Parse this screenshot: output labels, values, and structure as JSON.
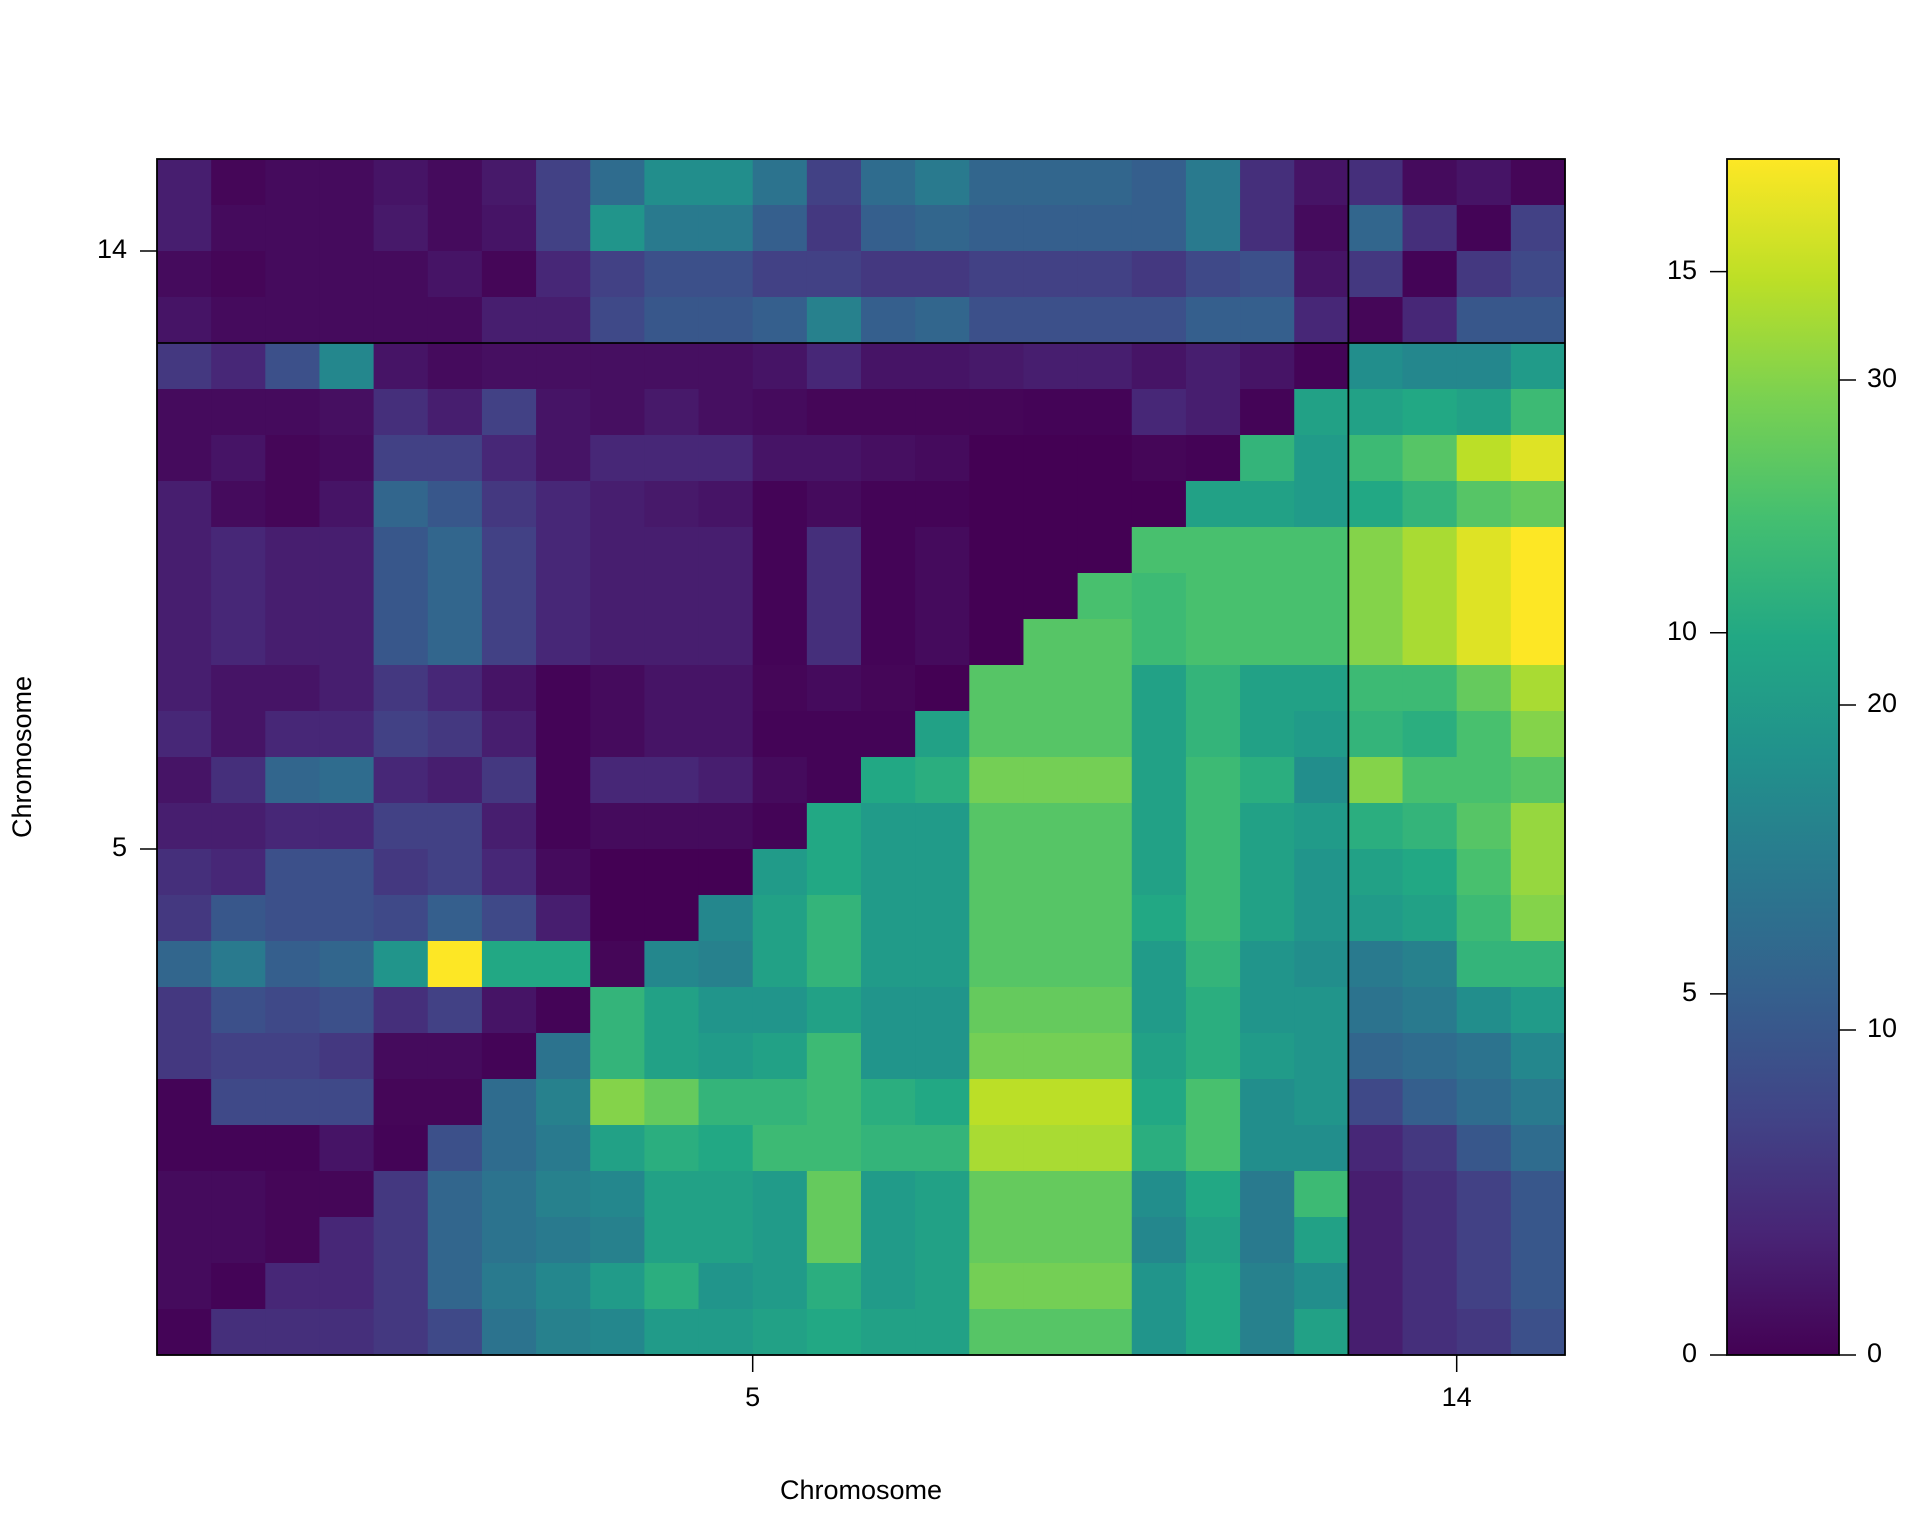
{
  "chart_data": {
    "type": "heatmap",
    "x_label": "Chromosome",
    "y_label": "Chromosome",
    "chromosomes": [
      "5",
      "14"
    ],
    "markers_per_chromosome": [
      22,
      4
    ],
    "colormap": "viridis",
    "zlim": [
      0,
      36.8
    ],
    "z": [
      [
        3,
        0.5,
        1,
        1,
        2,
        1,
        2.5,
        7,
        13,
        18,
        18,
        14,
        7,
        13,
        15,
        12,
        12,
        12,
        11,
        15,
        5,
        2,
        5,
        1,
        2,
        0.5
      ],
      [
        3,
        1,
        1,
        1,
        2.5,
        1,
        2,
        7,
        19,
        15,
        15,
        11,
        6,
        11,
        12,
        11,
        11,
        11,
        11,
        15,
        5,
        1,
        12,
        5,
        0.3,
        7
      ],
      [
        1,
        0.5,
        1,
        1,
        1,
        2,
        0.5,
        4,
        7,
        9,
        9,
        7,
        7,
        6,
        6,
        7,
        7,
        7,
        6,
        8,
        9,
        2,
        6,
        0.3,
        6,
        8
      ],
      [
        2,
        1,
        1,
        1,
        1,
        1,
        3,
        3,
        8,
        10,
        10,
        11,
        16,
        11,
        12,
        9,
        9,
        9,
        9,
        11,
        11,
        4,
        0.5,
        4,
        10,
        10
      ],
      [
        6,
        4,
        9,
        17,
        2,
        1,
        1.5,
        1.5,
        1.5,
        1.5,
        1.5,
        2,
        4,
        2,
        2,
        2.5,
        3,
        3,
        2,
        3,
        2,
        0.3,
        18,
        17,
        17,
        20
      ],
      [
        1,
        1,
        1,
        1.5,
        5,
        3,
        7,
        2,
        1.5,
        2.5,
        1.5,
        1,
        0.5,
        0.5,
        0.5,
        0.5,
        0.3,
        0.3,
        4,
        3,
        0.3,
        21,
        21,
        22,
        21,
        25
      ],
      [
        1,
        2,
        0.5,
        1,
        7,
        7,
        4,
        2,
        4,
        4,
        4,
        2,
        2,
        1.5,
        1,
        0,
        0,
        0,
        0.5,
        0.2,
        24,
        20,
        25,
        27,
        33,
        35
      ],
      [
        3,
        1,
        0.5,
        2,
        12,
        10,
        6,
        4,
        3,
        2.5,
        2,
        0.3,
        1,
        0.3,
        0.3,
        0,
        0,
        0,
        0,
        21,
        21,
        20,
        22,
        24,
        27,
        28
      ],
      [
        3,
        4,
        3,
        3,
        10,
        12,
        7,
        4,
        3,
        3,
        3,
        0.3,
        5,
        0.3,
        1,
        0,
        0,
        0,
        26,
        26,
        26,
        26,
        30,
        32,
        35,
        37
      ],
      [
        3,
        4,
        3,
        3,
        10,
        12,
        7,
        4,
        3,
        3,
        3,
        0.3,
        5,
        0.3,
        1,
        0,
        0,
        26,
        25,
        26,
        26,
        26,
        30,
        32,
        35,
        37
      ],
      [
        3,
        4,
        3,
        3,
        10,
        12,
        7,
        4,
        3,
        3,
        3,
        0.3,
        5,
        0.3,
        1,
        0,
        27,
        27,
        25,
        26,
        26,
        26,
        30,
        32,
        35,
        37
      ],
      [
        3,
        2,
        2,
        3,
        6,
        4,
        2,
        0.3,
        1,
        2,
        2,
        0.5,
        1,
        0.5,
        0,
        27,
        27,
        27,
        21,
        24,
        21,
        21,
        25,
        25,
        28,
        32
      ],
      [
        4,
        2,
        4,
        4,
        7,
        6,
        3,
        0.3,
        1,
        2,
        2,
        0.3,
        0.3,
        0.3,
        21,
        27,
        27,
        27,
        21,
        24,
        21,
        20,
        24,
        23,
        26,
        30
      ],
      [
        2,
        5,
        12,
        13,
        4,
        3,
        6,
        0.3,
        4,
        4,
        3,
        1,
        0.3,
        22,
        23,
        29,
        29,
        29,
        21,
        25,
        23,
        18,
        30,
        26,
        26,
        27
      ],
      [
        3,
        3,
        4,
        4,
        7,
        7,
        3,
        0.3,
        1,
        1,
        1,
        0.3,
        22,
        20,
        20,
        27,
        27,
        27,
        21,
        25,
        21,
        20,
        23,
        24,
        27,
        31
      ],
      [
        5,
        4,
        9,
        9,
        6,
        7,
        4,
        1,
        0,
        0,
        0,
        20,
        22,
        20,
        20,
        27,
        27,
        27,
        21,
        25,
        21,
        19,
        21,
        22,
        26,
        31
      ],
      [
        6,
        10,
        9,
        9,
        8,
        11,
        8,
        3,
        0,
        0,
        17,
        21,
        24,
        20,
        20,
        27,
        27,
        27,
        22,
        25,
        21,
        19,
        20,
        21,
        25,
        30
      ],
      [
        12,
        15,
        11,
        12,
        19,
        37,
        22,
        22,
        0.5,
        17,
        16,
        21,
        24,
        20,
        20,
        27,
        27,
        27,
        20,
        24,
        19,
        18,
        15,
        16,
        24,
        24
      ],
      [
        6,
        9,
        8,
        9,
        5,
        7,
        2,
        0.3,
        24,
        21,
        19,
        19,
        21,
        19,
        19,
        28,
        28,
        28,
        20,
        23,
        19,
        19,
        14,
        15,
        18,
        20
      ],
      [
        6,
        7,
        7,
        6,
        1,
        1,
        0.3,
        14,
        24,
        21,
        20,
        21,
        25,
        19,
        19,
        29,
        29,
        29,
        21,
        23,
        20,
        19,
        12,
        13,
        14,
        17
      ],
      [
        0.3,
        8,
        8,
        8,
        0.5,
        0.5,
        13,
        16,
        30,
        28,
        24,
        24,
        25,
        23,
        22,
        33,
        33,
        33,
        22,
        26,
        18,
        19,
        8,
        11,
        13,
        15
      ],
      [
        0.3,
        0.3,
        0.3,
        2,
        0.3,
        9,
        13,
        15,
        21,
        23,
        22,
        25,
        25,
        24,
        24,
        32,
        32,
        32,
        23,
        26,
        18,
        18,
        4,
        6,
        10,
        13
      ],
      [
        1,
        1,
        0.5,
        0.5,
        6,
        12,
        14,
        16,
        17,
        21,
        21,
        20,
        28,
        20,
        21,
        28,
        28,
        28,
        18,
        22,
        15,
        25,
        3,
        5,
        7,
        10
      ],
      [
        1,
        1,
        0.5,
        4,
        6,
        12,
        14,
        15,
        16,
        21,
        21,
        20,
        28,
        20,
        21,
        28,
        28,
        28,
        17,
        21,
        15,
        21,
        3,
        5,
        7,
        10
      ],
      [
        1,
        0.3,
        4,
        4,
        6,
        12,
        15,
        17,
        20,
        23,
        19,
        20,
        23,
        20,
        21,
        29,
        29,
        29,
        19,
        22,
        16,
        18,
        3,
        5,
        7,
        10
      ],
      [
        0.3,
        5,
        5,
        5,
        6,
        8,
        14,
        16,
        17,
        20,
        20,
        21,
        22,
        21,
        21,
        27,
        27,
        27,
        19,
        22,
        16,
        21,
        3,
        5,
        6,
        9
      ]
    ],
    "ylim": [
      0,
      16.56
    ],
    "yticks": [
      0,
      5,
      10,
      15
    ],
    "y2lim": [
      0,
      36.8
    ],
    "y2ticks": [
      0,
      10,
      20,
      30
    ]
  }
}
